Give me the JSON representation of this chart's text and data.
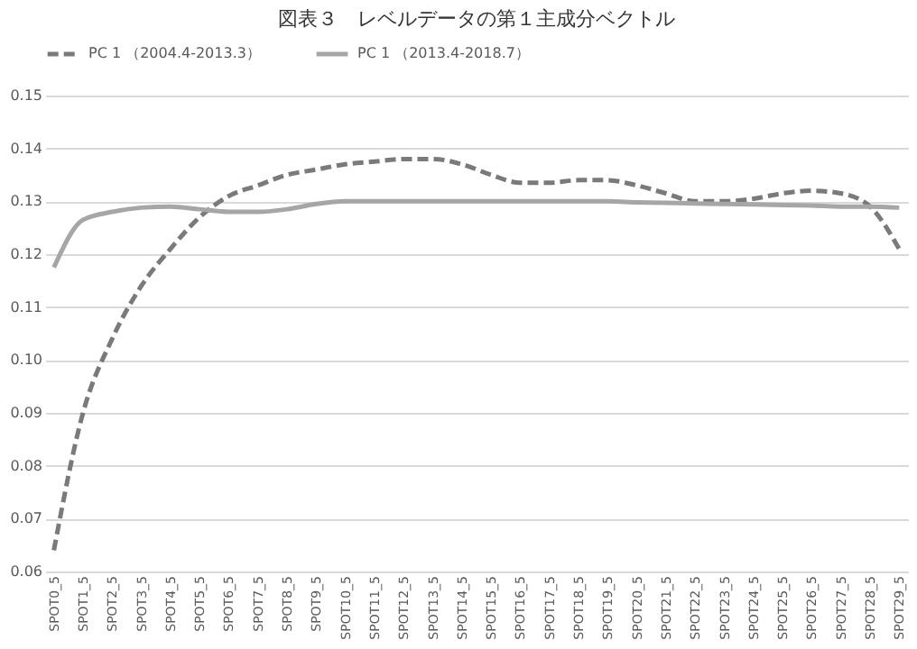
{
  "chart_data": {
    "type": "line",
    "title": "図表３　レベルデータの第１主成分ベクトル",
    "categories": [
      "SPOT0_5",
      "SPOT1_5",
      "SPOT2_5",
      "SPOT3_5",
      "SPOT4_5",
      "SPOT5_5",
      "SPOT6_5",
      "SPOT7_5",
      "SPOT8_5",
      "SPOT9_5",
      "SPOT10_5",
      "SPOT11_5",
      "SPOT12_5",
      "SPOT13_5",
      "SPOT14_5",
      "SPOT15_5",
      "SPOT16_5",
      "SPOT17_5",
      "SPOT18_5",
      "SPOT19_5",
      "SPOT20_5",
      "SPOT21_5",
      "SPOT22_5",
      "SPOT23_5",
      "SPOT24_5",
      "SPOT25_5",
      "SPOT26_5",
      "SPOT27_5",
      "SPOT28_5",
      "SPOT29_5"
    ],
    "series": [
      {
        "name": "PC 1 （2004.4-2013.3）",
        "color": "#7a7a7a",
        "line_style": "dashed",
        "values": [
          0.064,
          0.09,
          0.104,
          0.114,
          0.121,
          0.127,
          0.131,
          0.133,
          0.135,
          0.136,
          0.137,
          0.1375,
          0.138,
          0.138,
          0.137,
          0.135,
          0.1335,
          0.1335,
          0.134,
          0.134,
          0.133,
          0.1315,
          0.13,
          0.13,
          0.1305,
          0.1315,
          0.132,
          0.1315,
          0.129,
          0.121
        ]
      },
      {
        "name": "PC 1 （2013.4-2018.7）",
        "color": "#a6a6a6",
        "line_style": "solid",
        "values": [
          0.1175,
          0.1265,
          0.128,
          0.1288,
          0.129,
          0.1285,
          0.128,
          0.128,
          0.1285,
          0.1295,
          0.13,
          0.13,
          0.13,
          0.13,
          0.13,
          0.13,
          0.13,
          0.13,
          0.13,
          0.13,
          0.1298,
          0.1297,
          0.1296,
          0.1295,
          0.1294,
          0.1293,
          0.1292,
          0.129,
          0.129,
          0.1288
        ]
      }
    ],
    "ylim": [
      0.06,
      0.15
    ],
    "yticks": [
      0.06,
      0.07,
      0.08,
      0.09,
      {
        "value": 0.1,
        "label": "0.10"
      },
      0.11,
      0.12,
      0.13,
      0.14,
      0.15
    ],
    "grid": "y",
    "legend": "top",
    "marker": "none"
  }
}
